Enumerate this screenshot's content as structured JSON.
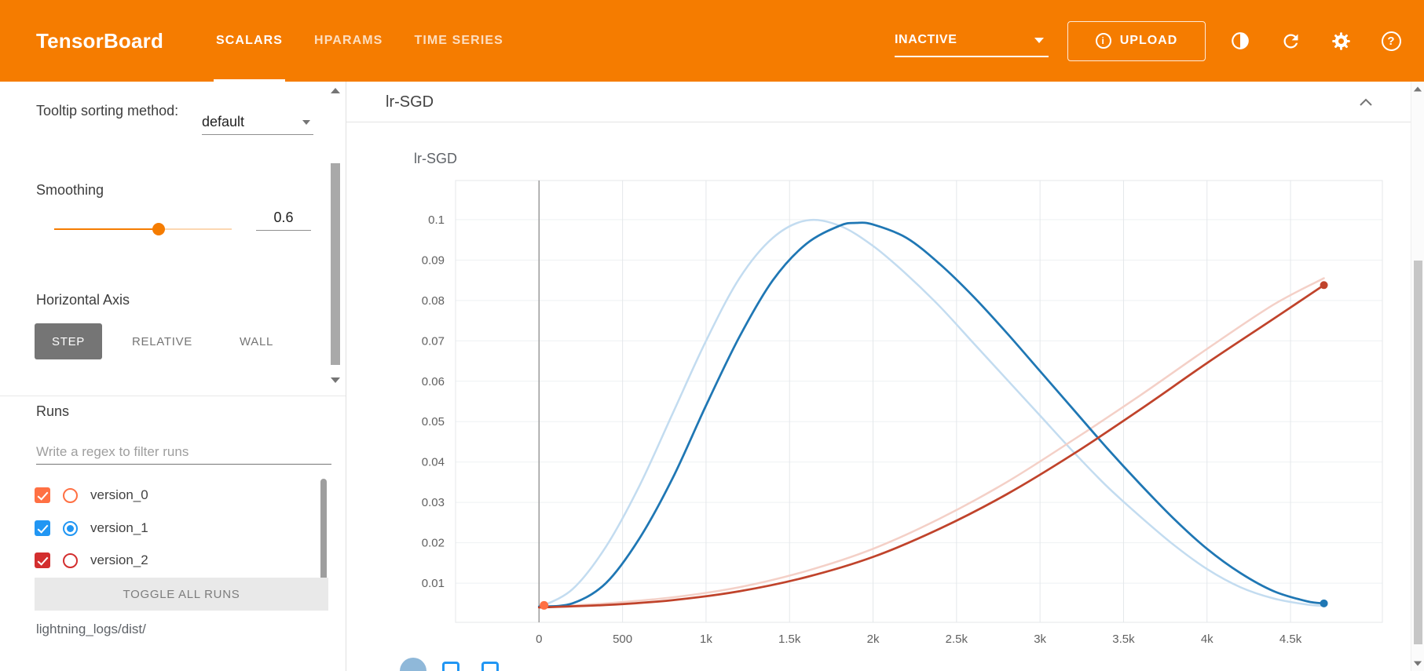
{
  "header": {
    "logo": "TensorBoard",
    "tabs": [
      {
        "label": "SCALARS",
        "active": true
      },
      {
        "label": "HPARAMS",
        "active": false
      },
      {
        "label": "TIME SERIES",
        "active": false
      }
    ],
    "status": {
      "label": "INACTIVE"
    },
    "upload": {
      "label": "UPLOAD",
      "icon_glyph": "i"
    },
    "icons": {
      "help_glyph": "?"
    },
    "colors": {
      "bar": "#f57c00"
    }
  },
  "sidebar": {
    "tooltip_sorting": {
      "label": "Tooltip sorting method:",
      "value": "default"
    },
    "smoothing": {
      "label": "Smoothing",
      "value": "0.6"
    },
    "horizontal_axis": {
      "label": "Horizontal Axis",
      "options": [
        "STEP",
        "RELATIVE",
        "WALL"
      ],
      "selected": "STEP"
    },
    "runs": {
      "title": "Runs",
      "filter_placeholder": "Write a regex to filter runs",
      "items": [
        {
          "label": "version_0",
          "color": "#ff7043",
          "checked": true,
          "radio_selected": false
        },
        {
          "label": "version_1",
          "color": "#2196f3",
          "checked": true,
          "radio_selected": true
        },
        {
          "label": "version_2",
          "color": "#d32f2f",
          "checked": true,
          "radio_selected": false
        }
      ],
      "toggle_all_label": "TOGGLE ALL RUNS",
      "log_dir": "lightning_logs/dist/"
    }
  },
  "main": {
    "card_title": "lr-SGD"
  },
  "chart_data": {
    "type": "line",
    "title": "lr-SGD",
    "x_range": [
      -500,
      5050
    ],
    "y_range": [
      0.0003,
      0.1097
    ],
    "grid": true,
    "legend": "hidden",
    "x_ticks": {
      "values": [
        0,
        500,
        1000,
        1500,
        2000,
        2500,
        3000,
        3500,
        4000,
        4500
      ],
      "labels": [
        "0",
        "500",
        "1k",
        "1.5k",
        "2k",
        "2.5k",
        "3k",
        "3.5k",
        "4k",
        "4.5k"
      ]
    },
    "y_ticks": {
      "values": [
        0.01,
        0.02,
        0.03,
        0.04,
        0.05,
        0.06,
        0.07,
        0.08,
        0.09,
        0.1
      ],
      "labels": [
        "0.01",
        "0.02",
        "0.03",
        "0.04",
        "0.05",
        "0.06",
        "0.07",
        "0.08",
        "0.09",
        "0.1"
      ]
    },
    "zero_line_x": 0,
    "series": [
      {
        "name": "version_1 (raw)",
        "color": "#c3dcf0",
        "width": 2.5,
        "x": [
          0,
          200,
          400,
          600,
          800,
          1000,
          1200,
          1400,
          1600,
          1800,
          2000,
          2200,
          2400,
          2600,
          2800,
          3000,
          3200,
          3400,
          3600,
          3800,
          4000,
          4200,
          4400,
          4600,
          4700
        ],
        "y": [
          0.004,
          0.0085,
          0.019,
          0.034,
          0.052,
          0.07,
          0.0855,
          0.0955,
          0.0998,
          0.0985,
          0.0935,
          0.0865,
          0.0785,
          0.0695,
          0.0605,
          0.0515,
          0.0425,
          0.034,
          0.0265,
          0.0195,
          0.0135,
          0.009,
          0.0062,
          0.0047,
          0.0044
        ]
      },
      {
        "name": "version_2 (raw)",
        "color": "#f4d0c7",
        "width": 2.5,
        "x": [
          0,
          400,
          800,
          1200,
          1600,
          2000,
          2400,
          2800,
          3200,
          3600,
          4000,
          4400,
          4700
        ],
        "y": [
          0.004,
          0.005,
          0.0065,
          0.009,
          0.013,
          0.0185,
          0.026,
          0.035,
          0.0455,
          0.0565,
          0.068,
          0.079,
          0.0855
        ]
      },
      {
        "name": "version_1 (smoothed)",
        "color": "#1f77b4",
        "width": 2.75,
        "end_dot": true,
        "x": [
          0,
          200,
          400,
          600,
          800,
          1000,
          1200,
          1400,
          1600,
          1800,
          1900,
          2000,
          2200,
          2400,
          2600,
          2800,
          3000,
          3200,
          3400,
          3600,
          3800,
          4000,
          4200,
          4400,
          4600,
          4700
        ],
        "y": [
          0.0042,
          0.005,
          0.01,
          0.021,
          0.036,
          0.054,
          0.071,
          0.085,
          0.094,
          0.0985,
          0.0992,
          0.0988,
          0.0955,
          0.089,
          0.081,
          0.072,
          0.0625,
          0.053,
          0.0435,
          0.0345,
          0.026,
          0.0185,
          0.0125,
          0.008,
          0.0055,
          0.005
        ]
      },
      {
        "name": "version_2 (smoothed)",
        "color": "#c0432b",
        "width": 2.75,
        "end_dot": true,
        "x": [
          0,
          400,
          800,
          1200,
          1600,
          2000,
          2400,
          2800,
          3200,
          3600,
          4000,
          4400,
          4700
        ],
        "y": [
          0.004,
          0.0046,
          0.0058,
          0.008,
          0.0115,
          0.0165,
          0.0235,
          0.032,
          0.042,
          0.053,
          0.0645,
          0.0755,
          0.0838
        ]
      },
      {
        "name": "version_0",
        "color": "#ff7043",
        "dot_only": true,
        "x": [
          30
        ],
        "y": [
          0.0045
        ]
      }
    ]
  }
}
